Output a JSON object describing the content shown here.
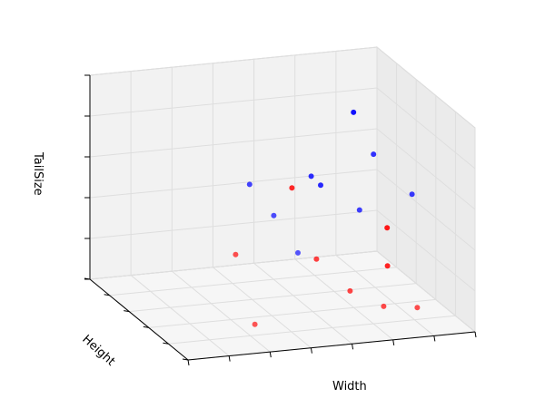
{
  "chart_data": {
    "type": "scatter",
    "projection": "3d",
    "xlabel": "Width",
    "ylabel": "Height",
    "zlabel": "TailSize",
    "grid": true,
    "colors": {
      "series_a": "#0000ff",
      "series_b": "#ff0000"
    },
    "series": [
      {
        "color": "#0000ff",
        "points": [
          {
            "x": 0.85,
            "y": 0.8,
            "z": 0.78
          },
          {
            "x": 0.8,
            "y": 0.45,
            "z": 0.72
          },
          {
            "x": 0.6,
            "y": 0.5,
            "z": 0.62
          },
          {
            "x": 0.65,
            "y": 0.55,
            "z": 0.55
          },
          {
            "x": 0.7,
            "y": 0.3,
            "z": 0.52
          },
          {
            "x": 0.9,
            "y": 0.35,
            "z": 0.55
          },
          {
            "x": 0.3,
            "y": 0.25,
            "z": 0.72
          },
          {
            "x": 0.35,
            "y": 0.15,
            "z": 0.6
          },
          {
            "x": 0.4,
            "y": 0.05,
            "z": 0.45
          }
        ]
      },
      {
        "color": "#ff0000",
        "points": [
          {
            "x": 0.95,
            "y": 0.75,
            "z": 0.22
          },
          {
            "x": 0.9,
            "y": 0.6,
            "z": 0.1
          },
          {
            "x": 0.55,
            "y": 0.55,
            "z": 0.55
          },
          {
            "x": 0.55,
            "y": 0.3,
            "z": 0.3
          },
          {
            "x": 0.65,
            "y": 0.25,
            "z": 0.15
          },
          {
            "x": 0.75,
            "y": 0.2,
            "z": 0.08
          },
          {
            "x": 0.85,
            "y": 0.15,
            "z": 0.08
          },
          {
            "x": 0.2,
            "y": 0.1,
            "z": 0.45
          },
          {
            "x": 0.25,
            "y": 0.05,
            "z": 0.12
          }
        ]
      }
    ]
  }
}
